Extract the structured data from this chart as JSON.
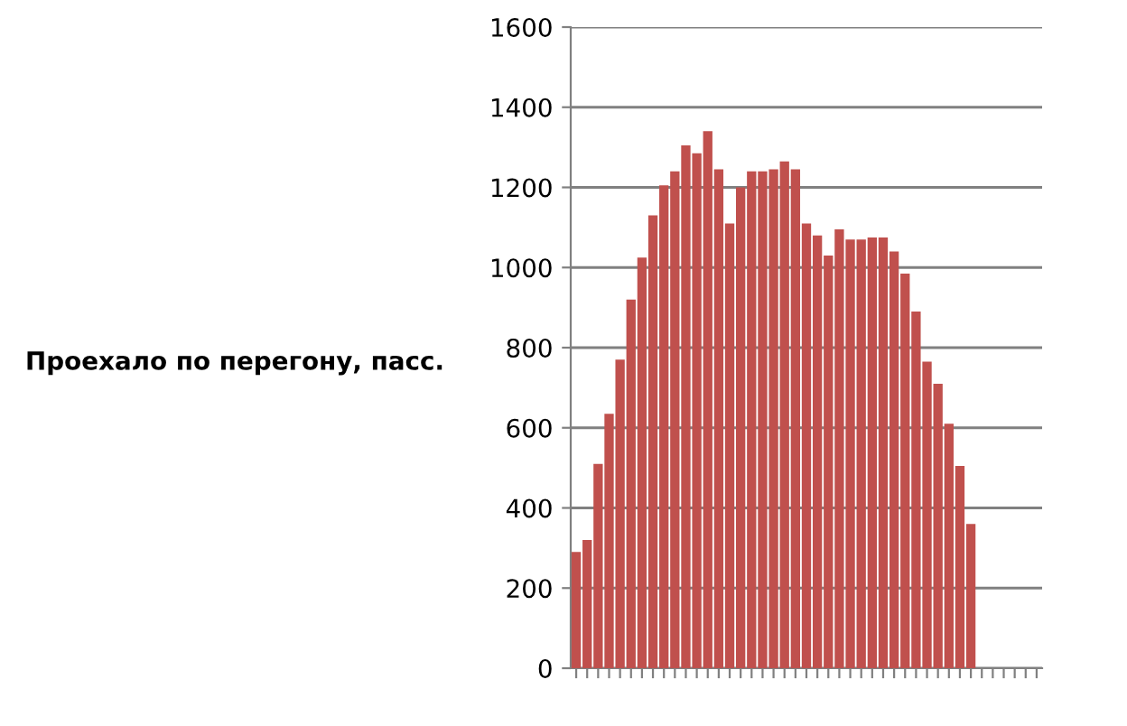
{
  "chart_data": {
    "type": "bar",
    "ylabel": "Проехало по перегону, пасс.",
    "categories": [
      null,
      null,
      null,
      null,
      null,
      null,
      null,
      null,
      null,
      null,
      null,
      null,
      null,
      null,
      null,
      null,
      null,
      null,
      null,
      null,
      null,
      null,
      null,
      null,
      null,
      null,
      null,
      null,
      null,
      null,
      null,
      null,
      null,
      null,
      null,
      null,
      null,
      null,
      null,
      null,
      null,
      null,
      null
    ],
    "series": [
      {
        "color": "#c0504d",
        "values": [
          290,
          320,
          510,
          635,
          770,
          920,
          1025,
          1130,
          1205,
          1240,
          1305,
          1285,
          1340,
          1245,
          1110,
          1200,
          1240,
          1240,
          1245,
          1265,
          1245,
          1110,
          1080,
          1030,
          1095,
          1070,
          1070,
          1075,
          1075,
          1040,
          985,
          890,
          765,
          710,
          610,
          505,
          360,
          null,
          null,
          null,
          null,
          null,
          null
        ]
      }
    ],
    "ylim": [
      0,
      1600
    ],
    "yticks": [
      0,
      200,
      400,
      600,
      800,
      1000,
      1200,
      1400,
      1600
    ],
    "grid": "y",
    "legend": false
  }
}
